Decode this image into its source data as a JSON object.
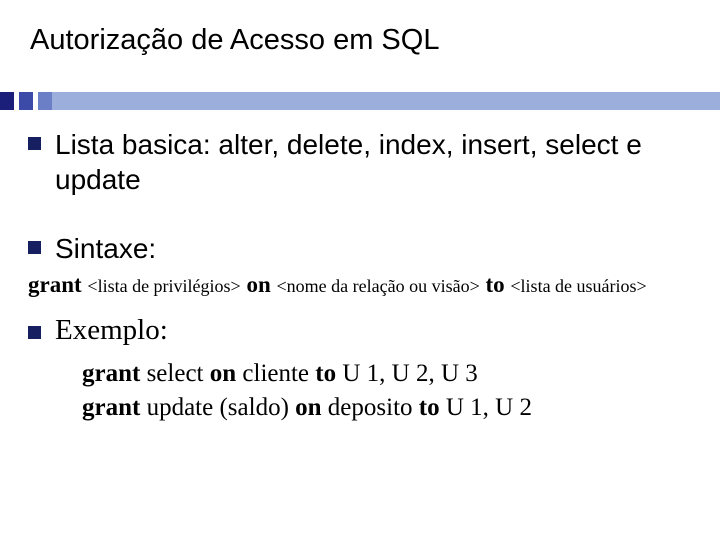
{
  "colors": {
    "background": "#ffffff",
    "text": "#000000",
    "bullet": "#162060",
    "accent": [
      "#1b1f7a",
      "#3c4aa8",
      "#6b7fc7",
      "#9caedb"
    ]
  },
  "typography": {
    "title_fontsize": 29,
    "body_fontsize": 28,
    "syntax_fontsize": 23,
    "syntax_placeholder_fontsize": 18,
    "example_heading_fontsize": 29,
    "example_body_fontsize": 25,
    "sans_family": "Arial",
    "serif_family": "Times New Roman"
  },
  "title": "Autorização de Acesso em SQL",
  "item1": "Lista basica: alter, delete, index, insert, select e update",
  "item2": "Sintaxe:",
  "syntax": {
    "kw_grant": "grant",
    "ph_privlist": "<lista de privilégios>",
    "kw_on": "on",
    "ph_relation": "<nome da relação ou visão>",
    "kw_to": "to",
    "ph_userlist": "<lista de usuários>"
  },
  "item3": "Exemplo:",
  "example": {
    "line1": {
      "kw_grant": "grant",
      "mid1": " select ",
      "kw_on": "on",
      "mid2": " cliente ",
      "kw_to": "to",
      "tail": " U 1, U 2, U 3"
    },
    "line2": {
      "kw_grant": "grant",
      "mid1": " update (saldo) ",
      "kw_on": "on",
      "mid2": " deposito ",
      "kw_to": "to",
      "tail": " U 1, U 2"
    }
  }
}
